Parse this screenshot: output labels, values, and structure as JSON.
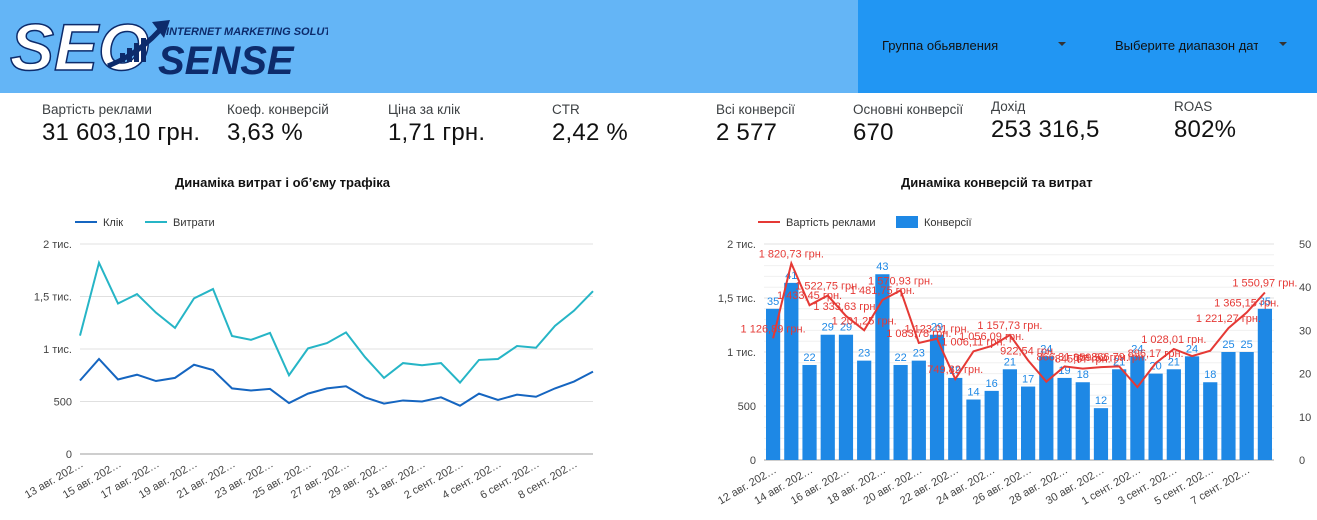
{
  "header": {
    "logo_text_seo": "SEO",
    "logo_text_sense": "SENSE",
    "logo_tagline": "INTERNET MARKETING SOLUTIONS",
    "colors": {
      "bar": "#64b5f6",
      "filter": "#2196f3",
      "logo_white": "#ffffff",
      "logo_navy": "#0d2b6b"
    }
  },
  "filters": {
    "ad_group": "Группа обьявления",
    "date_range": "Выберите диапазон дат"
  },
  "kpis": [
    {
      "title": "Вартість реклами",
      "value": "31 603,10 грн."
    },
    {
      "title": "Коеф. конверсій",
      "value": "3,63 %"
    },
    {
      "title": "Ціна за клік",
      "value": "1,71 грн."
    },
    {
      "title": "CTR",
      "value": "2,42 %"
    },
    {
      "title": "Всі конверсії",
      "value": "2 577"
    },
    {
      "title": "Основні конверсії",
      "value": "670"
    },
    {
      "title": "Дохід",
      "value": "253 316,5"
    },
    {
      "title": "ROAS",
      "value": "802%"
    }
  ],
  "chart_data": [
    {
      "type": "line",
      "title": "Динаміка витрат і об’єму трафіка",
      "legend_position": "top-left",
      "grid": true,
      "ylim": [
        0,
        2000
      ],
      "yticks": [
        "0",
        "500",
        "1 тис.",
        "1,5 тис.",
        "2 тис."
      ],
      "x_tick_labels": [
        "13 авг. 202…",
        "15 авг. 202…",
        "17 авг. 202…",
        "19 авг. 202…",
        "21 авг. 202…",
        "23 авг. 202…",
        "25 авг. 202…",
        "27 авг. 202…",
        "29 авг. 202…",
        "31 авг. 202…",
        "2 сент. 202…",
        "4 сент. 202…",
        "6 сент. 202…",
        "8 сент. 202…"
      ],
      "series": [
        {
          "name": "Клік",
          "color": "#1565c0",
          "values": [
            700,
            905,
            710,
            755,
            695,
            725,
            850,
            800,
            625,
            605,
            620,
            485,
            575,
            625,
            645,
            540,
            480,
            510,
            500,
            540,
            460,
            575,
            515,
            565,
            545,
            625,
            690,
            785
          ]
        },
        {
          "name": "Витрати",
          "color": "#26b5c6",
          "values": [
            1127,
            1821,
            1433,
            1523,
            1346,
            1201,
            1482,
            1571,
            1124,
            1087,
            1153,
            750,
            1006,
            1056,
            1158,
            923,
            725,
            866,
            845,
            866,
            680,
            896,
            905,
            1028,
            1012,
            1221,
            1365,
            1551
          ]
        }
      ]
    },
    {
      "type": "bar",
      "title": "Динаміка конверсій та витрат",
      "legend_position": "top-left",
      "grid": true,
      "ylim_left": [
        0,
        2000
      ],
      "yticks_left": [
        "0",
        "500",
        "1 тис.",
        "1,5 тис.",
        "2 тис."
      ],
      "ylim_right": [
        0,
        50
      ],
      "yticks_right": [
        "0",
        "10",
        "20",
        "30",
        "40",
        "50"
      ],
      "x_tick_labels": [
        "12 авг. 202…",
        "14 авг. 202…",
        "16 авг. 202…",
        "18 авг. 202…",
        "20 авг. 202…",
        "22 авг. 202…",
        "24 авг. 202…",
        "26 авг. 202…",
        "28 авг. 202…",
        "30 авг. 202…",
        "1 сент. 202…",
        "3 сент. 202…",
        "5 сент. 202…",
        "7 сент. 202…"
      ],
      "series": [
        {
          "name": "Вартість реклами",
          "color": "#e53935",
          "axis": "left",
          "values": [
            1126.89,
            1820.73,
            1433.45,
            1522.75,
            1333.63,
            1201.25,
            1481.75,
            1570.93,
            1083.78,
            1123.01,
            749.82,
            1006.11,
            1056.09,
            1157.73,
            922.54,
            725,
            866.31,
            845.67,
            859.52,
            866.79,
            675,
            896.17,
            1028.01,
            962,
            1012,
            1221.27,
            1365.15,
            1550.97
          ],
          "labels": [
            "1 126,89 грн.",
            "1 820,73 грн.",
            "1 433,45 грн.",
            "1 522,75 грн.",
            "1 333,63 грн.",
            "1 201,25 грн.",
            "1 481,75 грн.",
            "1 570,93 грн.",
            "1 083,78 грн.",
            "1 123,01 грн.",
            "749,82 грн.",
            "1 006,11 грн.",
            "1 056,09 грн.",
            "1 157,73 грн.",
            "922,54 грн.",
            "",
            "866,31 грн.",
            "845,67 грн.",
            "859,52 грн.",
            "866,79 грн.",
            "",
            "896,17 грн.",
            "1 028,01 грн.",
            "",
            "",
            "1 221,27 грн.",
            "1 365,15 грн.",
            "1 550,97 грн."
          ]
        },
        {
          "name": "Конверсії",
          "color": "#1e88e5",
          "axis": "right",
          "values": [
            35,
            41,
            22,
            29,
            29,
            23,
            43,
            22,
            23,
            29,
            19,
            14,
            16,
            21,
            17,
            24,
            19,
            18,
            12,
            21,
            24,
            20,
            21,
            24,
            18,
            25,
            25,
            35
          ]
        }
      ]
    }
  ]
}
